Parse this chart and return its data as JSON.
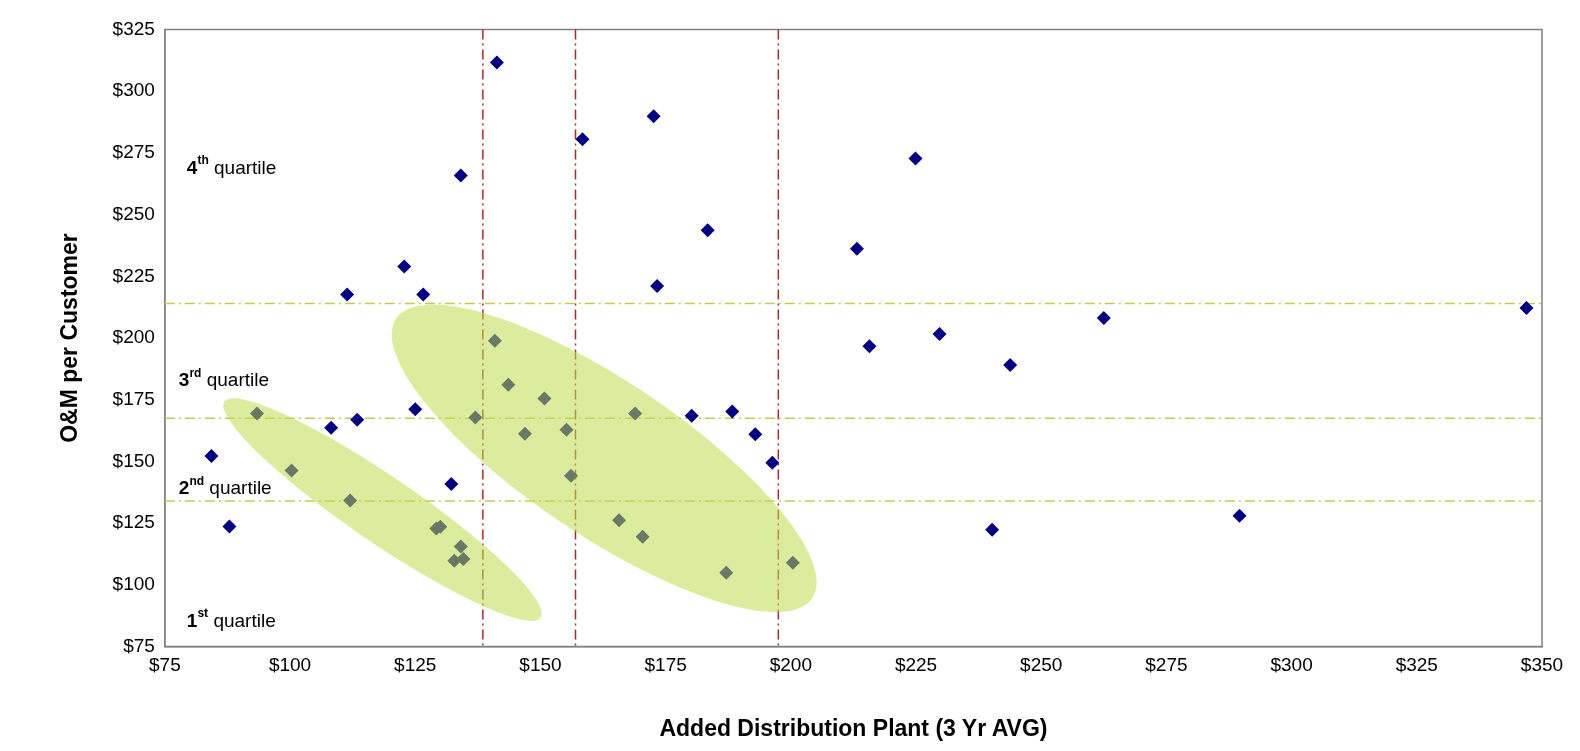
{
  "chart_data": {
    "type": "scatter",
    "xlabel": "Added Distribution Plant (3 Yr AVG)",
    "ylabel": "O&M per Customer",
    "xlim": [
      75,
      350
    ],
    "ylim": [
      75,
      325
    ],
    "xticks": [
      {
        "value": 75,
        "label": "$75"
      },
      {
        "value": 100,
        "label": "$100"
      },
      {
        "value": 125,
        "label": "$125"
      },
      {
        "value": 150,
        "label": "$150"
      },
      {
        "value": 175,
        "label": "$175"
      },
      {
        "value": 200,
        "label": "$200"
      },
      {
        "value": 225,
        "label": "$225"
      },
      {
        "value": 250,
        "label": "$250"
      },
      {
        "value": 275,
        "label": "$275"
      },
      {
        "value": 300,
        "label": "$300"
      },
      {
        "value": 325,
        "label": "$325"
      },
      {
        "value": 350,
        "label": "$350"
      }
    ],
    "yticks": [
      {
        "value": 75,
        "label": "$75"
      },
      {
        "value": 100,
        "label": "$100"
      },
      {
        "value": 125,
        "label": "$125"
      },
      {
        "value": 150,
        "label": "$150"
      },
      {
        "value": 175,
        "label": "$175"
      },
      {
        "value": 200,
        "label": "$200"
      },
      {
        "value": 225,
        "label": "$225"
      },
      {
        "value": 250,
        "label": "$250"
      },
      {
        "value": 275,
        "label": "$275"
      },
      {
        "value": 300,
        "label": "$300"
      },
      {
        "value": 325,
        "label": "$325"
      }
    ],
    "marker": "diamond",
    "legend": false,
    "grid": false,
    "series": [
      {
        "color": "#000080",
        "x": [
          84.3,
          87.9,
          93.4,
          100.3,
          108.2,
          111.4,
          112.0,
          113.4,
          122.8,
          125.0,
          126.6,
          129.2,
          130.0,
          132.2,
          132.8,
          134.1,
          134.1,
          134.6,
          137.0,
          140.9,
          141.3,
          143.6,
          146.9,
          150.8,
          155.2,
          156.1,
          158.4,
          165.7,
          168.9,
          170.4,
          172.6,
          173.3,
          180.2,
          183.4,
          187.1,
          188.3,
          192.9,
          196.3,
          200.4,
          213.2,
          215.7,
          224.9,
          229.7,
          240.2,
          243.8,
          262.5,
          289.6,
          346.9
        ],
        "values": [
          152.2,
          123.6,
          169.4,
          146.3,
          163.6,
          217.6,
          134.2,
          166.9,
          229.0,
          171.1,
          217.6,
          122.8,
          123.5,
          140.9,
          109.8,
          115.5,
          265.8,
          110.5,
          167.8,
          198.9,
          311.6,
          181.1,
          161.2,
          175.5,
          162.8,
          144.2,
          280.5,
          126.2,
          169.4,
          119.5,
          289.8,
          221.1,
          168.5,
          243.6,
          104.9,
          170.2,
          161.0,
          149.5,
          109.0,
          236.2,
          196.7,
          272.7,
          201.6,
          122.3,
          189.1,
          208.1,
          128.0,
          212.2
        ]
      }
    ],
    "ref_lines": [
      {
        "axis": "x",
        "value": 138.5,
        "color": "#a52a2a",
        "line_style": "dashed"
      },
      {
        "axis": "x",
        "value": 157,
        "color": "#a52a2a",
        "line_style": "dashed"
      },
      {
        "axis": "x",
        "value": 197.5,
        "color": "#a52a2a",
        "line_style": "dashed"
      },
      {
        "axis": "y",
        "value": 214,
        "color": "#c8c850",
        "line_style": "dashed"
      },
      {
        "axis": "y",
        "value": 167.5,
        "color": "#c8c850",
        "line_style": "dashed"
      },
      {
        "axis": "y",
        "value": 134,
        "color": "#c8c850",
        "line_style": "dashed"
      }
    ],
    "annotations": [
      "4$^{th}$ quartile",
      "3$^{rd}$ quartile",
      "2$^{nd}$ quartile",
      "1$^{st}$ quartile"
    ]
  }
}
